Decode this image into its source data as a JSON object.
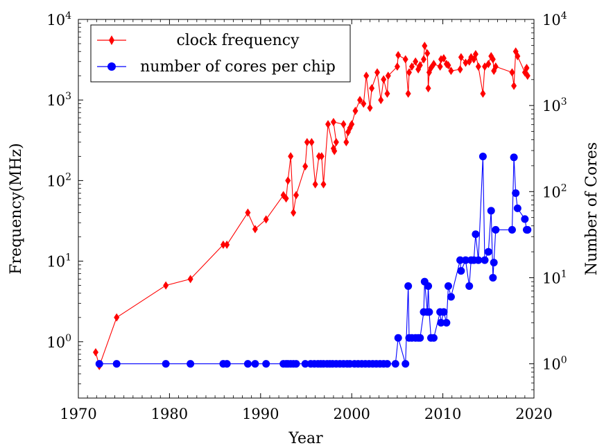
{
  "chart_data": {
    "type": "line",
    "xlabel": "Year",
    "ylabel_left": "Frequency(MHz)",
    "ylabel_right": "Number of Cores",
    "xlim": [
      1970,
      2020
    ],
    "ylim_left": [
      0.2,
      10000
    ],
    "ylim_right": [
      0.4,
      10000
    ],
    "yscale": "log",
    "grid": false,
    "legend_position": "top-left",
    "x_ticks": [
      {
        "value": 1970,
        "label": "1970"
      },
      {
        "value": 1980,
        "label": "1980"
      },
      {
        "value": 1990,
        "label": "1990"
      },
      {
        "value": 2000,
        "label": "2000"
      },
      {
        "value": 2010,
        "label": "2010"
      },
      {
        "value": 2020,
        "label": "2020"
      }
    ],
    "y_left_ticks": [
      {
        "value": 1,
        "base": "10",
        "exp": "0"
      },
      {
        "value": 10,
        "base": "10",
        "exp": "1"
      },
      {
        "value": 100,
        "base": "10",
        "exp": "2"
      },
      {
        "value": 1000,
        "base": "10",
        "exp": "3"
      },
      {
        "value": 10000,
        "base": "10",
        "exp": "4"
      }
    ],
    "y_right_ticks": [
      {
        "value": 1,
        "base": "10",
        "exp": "0"
      },
      {
        "value": 10,
        "base": "10",
        "exp": "1"
      },
      {
        "value": 100,
        "base": "10",
        "exp": "2"
      },
      {
        "value": 1000,
        "base": "10",
        "exp": "3"
      },
      {
        "value": 10000,
        "base": "10",
        "exp": "4"
      }
    ],
    "series": [
      {
        "name": "clock frequency",
        "axis": "left",
        "color": "#ff0000",
        "marker": "diamond",
        "points": [
          [
            1971.9,
            0.74
          ],
          [
            1972.3,
            0.5
          ],
          [
            1974.2,
            2.0
          ],
          [
            1979.6,
            5.0
          ],
          [
            1982.3,
            6.0
          ],
          [
            1985.9,
            16
          ],
          [
            1986.3,
            16
          ],
          [
            1988.6,
            40
          ],
          [
            1989.4,
            25
          ],
          [
            1990.6,
            33
          ],
          [
            1992.5,
            66
          ],
          [
            1992.8,
            60
          ],
          [
            1993.0,
            100
          ],
          [
            1993.3,
            200
          ],
          [
            1993.6,
            40
          ],
          [
            1993.9,
            66
          ],
          [
            1994.9,
            150
          ],
          [
            1995.1,
            300
          ],
          [
            1995.6,
            300
          ],
          [
            1996.0,
            90
          ],
          [
            1996.4,
            200
          ],
          [
            1996.7,
            200
          ],
          [
            1996.9,
            90
          ],
          [
            1997.4,
            500
          ],
          [
            1998.0,
            250
          ],
          [
            1998.1,
            233
          ],
          [
            1998.3,
            300
          ],
          [
            1998.0,
            533
          ],
          [
            1999.1,
            500
          ],
          [
            1999.4,
            300
          ],
          [
            1999.6,
            400
          ],
          [
            1999.8,
            450
          ],
          [
            2000.0,
            500
          ],
          [
            2000.4,
            733
          ],
          [
            2000.9,
            1000
          ],
          [
            2001.3,
            900
          ],
          [
            2001.6,
            2000
          ],
          [
            2002.0,
            800
          ],
          [
            2002.2,
            1400
          ],
          [
            2002.8,
            2200
          ],
          [
            2003.2,
            1000
          ],
          [
            2003.5,
            1800
          ],
          [
            2003.9,
            1200
          ],
          [
            2004.0,
            2000
          ],
          [
            2005.0,
            2600
          ],
          [
            2005.1,
            3600
          ],
          [
            2005.9,
            3200
          ],
          [
            2006.2,
            1200
          ],
          [
            2006.3,
            2200
          ],
          [
            2006.6,
            2600
          ],
          [
            2007.0,
            3000
          ],
          [
            2007.3,
            2400
          ],
          [
            2007.5,
            2700
          ],
          [
            2007.9,
            3200
          ],
          [
            2008.0,
            4700
          ],
          [
            2008.3,
            3800
          ],
          [
            2008.4,
            1400
          ],
          [
            2008.5,
            2200
          ],
          [
            2008.7,
            2500
          ],
          [
            2009.0,
            2800
          ],
          [
            2009.7,
            2600
          ],
          [
            2009.8,
            3200
          ],
          [
            2010.1,
            3300
          ],
          [
            2010.4,
            2800
          ],
          [
            2010.6,
            2700
          ],
          [
            2010.9,
            2300
          ],
          [
            2011.9,
            2400
          ],
          [
            2012.0,
            3400
          ],
          [
            2012.5,
            2900
          ],
          [
            2012.9,
            3000
          ],
          [
            2013.1,
            3400
          ],
          [
            2013.4,
            3200
          ],
          [
            2013.6,
            3700
          ],
          [
            2013.9,
            2600
          ],
          [
            2014.4,
            1200
          ],
          [
            2014.6,
            2600
          ],
          [
            2015.0,
            2800
          ],
          [
            2015.3,
            3500
          ],
          [
            2015.5,
            3200
          ],
          [
            2015.6,
            2300
          ],
          [
            2015.8,
            2600
          ],
          [
            2017.6,
            2200
          ],
          [
            2017.8,
            1500
          ],
          [
            2018.0,
            4000
          ],
          [
            2018.2,
            3500
          ],
          [
            2019.0,
            2200
          ],
          [
            2019.2,
            2500
          ],
          [
            2019.3,
            2000
          ]
        ]
      },
      {
        "name": "number of cores per chip",
        "axis": "right",
        "color": "#0000ff",
        "marker": "circle",
        "points": [
          [
            1972.3,
            1
          ],
          [
            1974.2,
            1
          ],
          [
            1979.6,
            1
          ],
          [
            1982.3,
            1
          ],
          [
            1985.9,
            1
          ],
          [
            1986.3,
            1
          ],
          [
            1988.6,
            1
          ],
          [
            1989.4,
            1
          ],
          [
            1990.6,
            1
          ],
          [
            1992.5,
            1
          ],
          [
            1992.8,
            1
          ],
          [
            1993.0,
            1
          ],
          [
            1993.3,
            1
          ],
          [
            1993.6,
            1
          ],
          [
            1993.9,
            1
          ],
          [
            1994.9,
            1
          ],
          [
            1995.5,
            1
          ],
          [
            1995.9,
            1
          ],
          [
            1996.3,
            1
          ],
          [
            1996.6,
            1
          ],
          [
            1996.9,
            1
          ],
          [
            1997.3,
            1
          ],
          [
            1997.6,
            1
          ],
          [
            1997.9,
            1
          ],
          [
            1998.3,
            1
          ],
          [
            1998.7,
            1
          ],
          [
            1999.1,
            1
          ],
          [
            1999.5,
            1
          ],
          [
            1999.8,
            1
          ],
          [
            2000.3,
            1
          ],
          [
            2000.7,
            1
          ],
          [
            2001.1,
            1
          ],
          [
            2001.5,
            1
          ],
          [
            2001.9,
            1
          ],
          [
            2002.3,
            1
          ],
          [
            2002.7,
            1
          ],
          [
            2003.1,
            1
          ],
          [
            2003.5,
            1
          ],
          [
            2003.9,
            1
          ],
          [
            2004.8,
            1
          ],
          [
            2005.1,
            2
          ],
          [
            2005.9,
            1
          ],
          [
            2006.2,
            8
          ],
          [
            2006.3,
            2
          ],
          [
            2006.6,
            2
          ],
          [
            2007.0,
            2
          ],
          [
            2007.3,
            2
          ],
          [
            2007.5,
            2
          ],
          [
            2007.9,
            4
          ],
          [
            2008.0,
            9
          ],
          [
            2008.3,
            4
          ],
          [
            2008.4,
            8
          ],
          [
            2008.5,
            4
          ],
          [
            2008.7,
            2
          ],
          [
            2009.0,
            2
          ],
          [
            2009.7,
            4
          ],
          [
            2009.8,
            3
          ],
          [
            2010.1,
            4
          ],
          [
            2010.4,
            3
          ],
          [
            2010.6,
            8
          ],
          [
            2010.9,
            6
          ],
          [
            2011.9,
            16
          ],
          [
            2012.0,
            12
          ],
          [
            2012.5,
            16
          ],
          [
            2012.9,
            8
          ],
          [
            2013.1,
            16
          ],
          [
            2013.4,
            16
          ],
          [
            2013.6,
            32
          ],
          [
            2013.9,
            16
          ],
          [
            2014.4,
            256
          ],
          [
            2014.6,
            16
          ],
          [
            2015.0,
            20
          ],
          [
            2015.3,
            60
          ],
          [
            2015.5,
            10
          ],
          [
            2015.6,
            15
          ],
          [
            2015.8,
            36
          ],
          [
            2017.6,
            36
          ],
          [
            2017.8,
            250
          ],
          [
            2018.0,
            96
          ],
          [
            2018.2,
            64
          ],
          [
            2019.0,
            48
          ],
          [
            2019.2,
            36
          ],
          [
            2019.3,
            36
          ]
        ]
      }
    ]
  }
}
